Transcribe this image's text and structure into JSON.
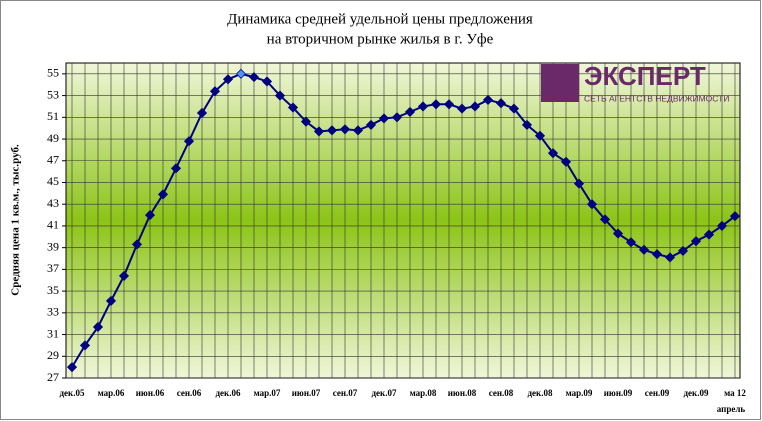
{
  "chart_data": {
    "type": "line",
    "title": [
      "Динамика средней удельной цены предложения",
      "на вторичном рынке жилья в г. Уфе"
    ],
    "y_label": "Средняя цена 1 кв.м., тыс.руб.",
    "annotation": "апрель",
    "logo": {
      "name": "ЭКСПЕРТ",
      "subtitle": "СЕТЬ АГЕНТСТВ НЕДВИЖИМОСТИ"
    },
    "categories": [
      "дек.05",
      null,
      null,
      "мар.06",
      null,
      null,
      "июн.06",
      null,
      null,
      "сен.06",
      null,
      null,
      "дек.06",
      null,
      null,
      "мар.07",
      null,
      null,
      "июн.07",
      null,
      null,
      "сен.07",
      null,
      null,
      "дек.07",
      null,
      null,
      "мар.08",
      null,
      null,
      "июн.08",
      null,
      null,
      "сен.08",
      null,
      null,
      "дек.08",
      null,
      null,
      "мар.09",
      null,
      null,
      "июн.09",
      null,
      null,
      "сен.09",
      null,
      null,
      "дек.09",
      null,
      null,
      "ма 12"
    ],
    "series": [
      {
        "name": "Средняя цена",
        "color": "#000080",
        "values": [
          28,
          30,
          31.7,
          34.1,
          36.4,
          39.3,
          42,
          43.9,
          46.3,
          48.8,
          51.4,
          53.4,
          54.5,
          55,
          54.7,
          54.3,
          53,
          51.9,
          50.6,
          49.7,
          49.8,
          49.9,
          49.8,
          50.3,
          50.9,
          51,
          51.5,
          52,
          52.2,
          52.2,
          51.8,
          52,
          52.6,
          52.3,
          51.8,
          50.3,
          49.3,
          47.7,
          46.9,
          44.9,
          43,
          41.6,
          40.3,
          39.5,
          38.8,
          38.4,
          38.1,
          38.7,
          39.6,
          40.2,
          41,
          41.9
        ]
      }
    ],
    "highlight_index": 13,
    "highlight_color": "#4f8fff",
    "ylim": [
      27,
      56
    ],
    "yticks": [
      27,
      29,
      31,
      33,
      35,
      37,
      39,
      41,
      43,
      45,
      47,
      49,
      51,
      53,
      55
    ],
    "grid": true
  }
}
